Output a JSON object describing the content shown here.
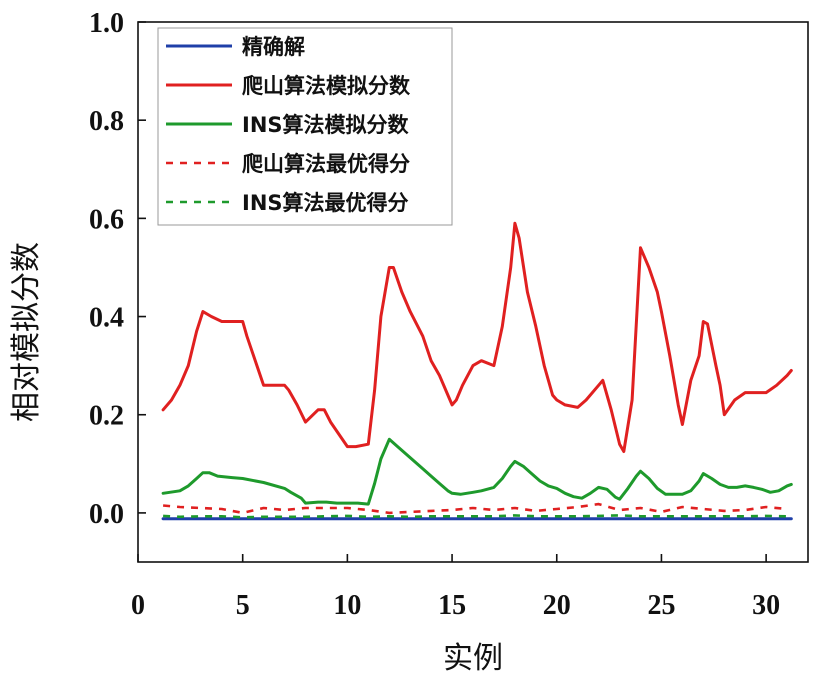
{
  "chart_data": {
    "type": "line",
    "xlabel": "实例",
    "ylabel": "相对模拟分数",
    "xlim": [
      0,
      32
    ],
    "ylim": [
      -0.1,
      1.0
    ],
    "xticks": [
      0,
      5,
      10,
      15,
      20,
      25,
      30
    ],
    "yticks": [
      0.0,
      0.2,
      0.4,
      0.6,
      0.8,
      1.0
    ],
    "xtick_labels": [
      "0",
      "5",
      "10",
      "15",
      "20",
      "25",
      "30"
    ],
    "ytick_labels": [
      "0.0",
      "0.2",
      "0.4",
      "0.6",
      "0.8",
      "1.0"
    ],
    "grid": false,
    "legend_position": "top-left",
    "series": [
      {
        "name": "精确解",
        "color": "#1f3fa8",
        "style": "solid",
        "x": [
          1.2,
          31.2
        ],
        "y": [
          -0.012,
          -0.012
        ]
      },
      {
        "name": "爬山算法模拟分数",
        "color": "#e02020",
        "style": "solid",
        "x": [
          1.2,
          1.6,
          2.0,
          2.4,
          2.8,
          3.1,
          3.5,
          4.0,
          4.5,
          5.0,
          5.2,
          6.0,
          6.4,
          7.0,
          7.2,
          7.6,
          8.0,
          8.6,
          8.9,
          9.2,
          9.6,
          10.0,
          10.4,
          11.0,
          11.3,
          11.6,
          12.0,
          12.2,
          12.6,
          13.0,
          13.6,
          14.0,
          14.4,
          14.8,
          15.0,
          15.2,
          15.5,
          16.0,
          16.4,
          17.0,
          17.4,
          17.8,
          18.0,
          18.2,
          18.6,
          19.0,
          19.4,
          19.8,
          20.0,
          20.4,
          21.0,
          21.4,
          22.0,
          22.2,
          22.6,
          23.0,
          23.2,
          23.6,
          24.0,
          24.4,
          24.8,
          25.0,
          25.4,
          25.8,
          26.0,
          26.4,
          26.8,
          27.0,
          27.2,
          27.6,
          27.8,
          28.0,
          28.5,
          29.0,
          29.5,
          30.0,
          30.5,
          31.0,
          31.2
        ],
        "y": [
          0.21,
          0.23,
          0.26,
          0.3,
          0.37,
          0.41,
          0.4,
          0.39,
          0.39,
          0.39,
          0.36,
          0.26,
          0.26,
          0.26,
          0.25,
          0.22,
          0.185,
          0.21,
          0.21,
          0.185,
          0.16,
          0.135,
          0.135,
          0.14,
          0.25,
          0.4,
          0.5,
          0.5,
          0.45,
          0.41,
          0.36,
          0.31,
          0.28,
          0.24,
          0.22,
          0.23,
          0.26,
          0.3,
          0.31,
          0.3,
          0.38,
          0.5,
          0.59,
          0.56,
          0.45,
          0.38,
          0.3,
          0.24,
          0.23,
          0.22,
          0.215,
          0.23,
          0.26,
          0.27,
          0.21,
          0.14,
          0.125,
          0.23,
          0.54,
          0.5,
          0.45,
          0.41,
          0.32,
          0.22,
          0.18,
          0.27,
          0.32,
          0.39,
          0.385,
          0.3,
          0.26,
          0.2,
          0.23,
          0.245,
          0.245,
          0.245,
          0.26,
          0.28,
          0.29
        ]
      },
      {
        "name": "INS算法模拟分数",
        "color": "#1e9a2c",
        "style": "solid",
        "x": [
          1.2,
          2.0,
          2.4,
          2.8,
          3.1,
          3.4,
          3.8,
          4.5,
          5.0,
          6.0,
          7.0,
          7.3,
          7.8,
          8.0,
          8.6,
          9.0,
          9.5,
          10.0,
          10.5,
          11.0,
          11.3,
          11.6,
          12.0,
          12.4,
          12.8,
          13.2,
          13.6,
          14.0,
          14.4,
          14.8,
          15.0,
          15.4,
          16.0,
          16.4,
          17.0,
          17.4,
          17.8,
          18.0,
          18.4,
          18.8,
          19.2,
          19.6,
          20.0,
          20.4,
          20.8,
          21.2,
          21.6,
          22.0,
          22.4,
          22.8,
          23.0,
          23.4,
          23.8,
          24.0,
          24.4,
          24.8,
          25.2,
          25.6,
          26.0,
          26.4,
          26.8,
          27.0,
          27.4,
          27.8,
          28.2,
          28.6,
          29.0,
          29.4,
          29.8,
          30.2,
          30.6,
          31.0,
          31.2
        ],
        "y": [
          0.04,
          0.045,
          0.055,
          0.07,
          0.082,
          0.082,
          0.075,
          0.072,
          0.07,
          0.062,
          0.05,
          0.042,
          0.03,
          0.02,
          0.022,
          0.022,
          0.02,
          0.02,
          0.02,
          0.018,
          0.06,
          0.11,
          0.15,
          0.135,
          0.12,
          0.105,
          0.09,
          0.075,
          0.06,
          0.045,
          0.04,
          0.038,
          0.042,
          0.045,
          0.052,
          0.07,
          0.095,
          0.105,
          0.095,
          0.08,
          0.065,
          0.055,
          0.05,
          0.04,
          0.033,
          0.03,
          0.04,
          0.052,
          0.048,
          0.032,
          0.028,
          0.05,
          0.075,
          0.085,
          0.07,
          0.05,
          0.038,
          0.038,
          0.038,
          0.045,
          0.065,
          0.08,
          0.07,
          0.058,
          0.052,
          0.052,
          0.055,
          0.052,
          0.048,
          0.042,
          0.045,
          0.055,
          0.058
        ]
      },
      {
        "name": "爬山算法最优得分",
        "color": "#e02020",
        "style": "dashed",
        "x": [
          1.2,
          2.0,
          3.0,
          4.0,
          5.0,
          6.0,
          7.0,
          8.0,
          9.0,
          10.0,
          11.0,
          12.0,
          13.0,
          14.0,
          15.0,
          16.0,
          17.0,
          18.0,
          19.0,
          20.0,
          21.0,
          22.0,
          23.0,
          24.0,
          25.0,
          26.0,
          27.0,
          28.0,
          29.0,
          30.0,
          31.0
        ],
        "y": [
          0.015,
          0.012,
          0.01,
          0.008,
          0.0,
          0.01,
          0.006,
          0.01,
          0.01,
          0.01,
          0.006,
          0.0,
          0.002,
          0.004,
          0.006,
          0.01,
          0.006,
          0.01,
          0.004,
          0.008,
          0.012,
          0.018,
          0.006,
          0.01,
          0.002,
          0.012,
          0.008,
          0.004,
          0.006,
          0.012,
          0.008
        ]
      },
      {
        "name": "INS算法最优得分",
        "color": "#1e9a2c",
        "style": "dashed",
        "x": [
          1.2,
          2.0,
          3.0,
          4.0,
          5.0,
          6.0,
          7.0,
          8.0,
          9.0,
          10.0,
          11.0,
          12.0,
          13.0,
          14.0,
          15.0,
          16.0,
          17.0,
          18.0,
          19.0,
          20.0,
          21.0,
          22.0,
          23.0,
          24.0,
          25.0,
          26.0,
          27.0,
          28.0,
          29.0,
          30.0,
          31.0
        ],
        "y": [
          -0.006,
          -0.008,
          -0.007,
          -0.007,
          -0.009,
          -0.008,
          -0.008,
          -0.008,
          -0.007,
          -0.006,
          -0.008,
          -0.007,
          -0.008,
          -0.007,
          -0.007,
          -0.007,
          -0.007,
          -0.005,
          -0.007,
          -0.007,
          -0.007,
          -0.006,
          -0.005,
          -0.007,
          -0.007,
          -0.007,
          -0.007,
          -0.007,
          -0.007,
          -0.006,
          -0.007
        ]
      }
    ]
  }
}
